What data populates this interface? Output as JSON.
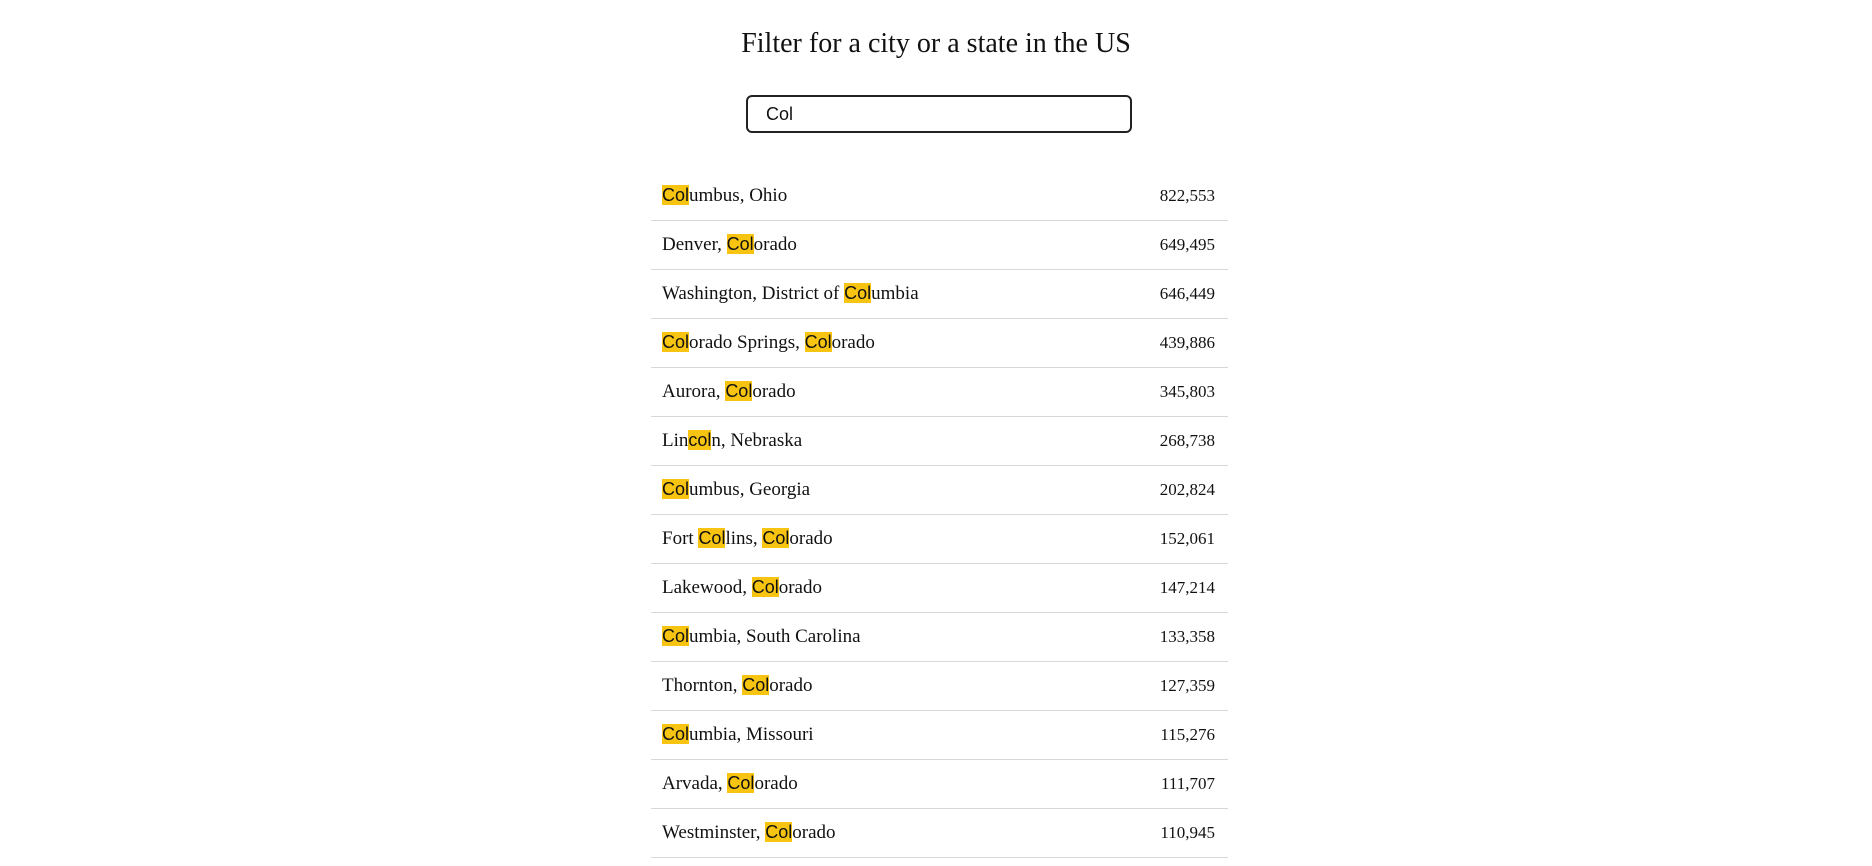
{
  "page": {
    "title": "Filter for a city or a state in the US"
  },
  "search": {
    "value": "Col",
    "placeholder": "",
    "highlight": "Col",
    "highlight_color": "#f7c411"
  },
  "results": [
    {
      "name": "Columbus, Ohio",
      "population": "822,553"
    },
    {
      "name": "Denver, Colorado",
      "population": "649,495"
    },
    {
      "name": "Washington, District of Columbia",
      "population": "646,449"
    },
    {
      "name": "Colorado Springs, Colorado",
      "population": "439,886"
    },
    {
      "name": "Aurora, Colorado",
      "population": "345,803"
    },
    {
      "name": "Lincoln, Nebraska",
      "population": "268,738"
    },
    {
      "name": "Columbus, Georgia",
      "population": "202,824"
    },
    {
      "name": "Fort Collins, Colorado",
      "population": "152,061"
    },
    {
      "name": "Lakewood, Colorado",
      "population": "147,214"
    },
    {
      "name": "Columbia, South Carolina",
      "population": "133,358"
    },
    {
      "name": "Thornton, Colorado",
      "population": "127,359"
    },
    {
      "name": "Columbia, Missouri",
      "population": "115,276"
    },
    {
      "name": "Arvada, Colorado",
      "population": "111,707"
    },
    {
      "name": "Westminster, Colorado",
      "population": "110,945"
    }
  ]
}
